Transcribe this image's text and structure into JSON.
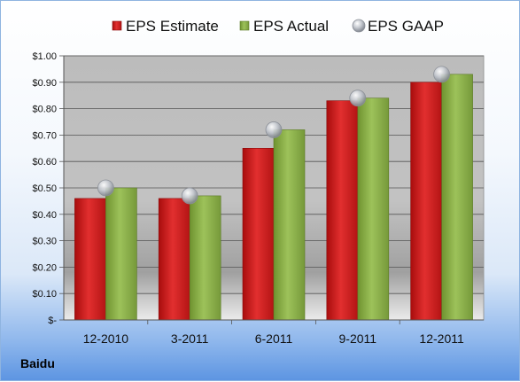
{
  "footer": {
    "company": "Baidu"
  },
  "colors": {
    "estimate": "#d42222",
    "actual": "#8db04a",
    "gaap": "#b8bcc4"
  },
  "chart_data": {
    "type": "bar",
    "categories": [
      "12-2010",
      "3-2011",
      "6-2011",
      "9-2011",
      "12-2011"
    ],
    "series": [
      {
        "name": "EPS Estimate",
        "kind": "bar",
        "values": [
          0.46,
          0.46,
          0.65,
          0.83,
          0.9
        ]
      },
      {
        "name": "EPS Actual",
        "kind": "bar",
        "values": [
          0.5,
          0.47,
          0.72,
          0.84,
          0.93
        ]
      },
      {
        "name": "EPS GAAP",
        "kind": "scatter",
        "values": [
          0.5,
          0.47,
          0.72,
          0.84,
          0.93
        ]
      }
    ],
    "y_ticks": [
      {
        "value": 0.0,
        "label": "$-"
      },
      {
        "value": 0.1,
        "label": "$0.10"
      },
      {
        "value": 0.2,
        "label": "$0.20"
      },
      {
        "value": 0.3,
        "label": "$0.30"
      },
      {
        "value": 0.4,
        "label": "$0.40"
      },
      {
        "value": 0.5,
        "label": "$0.50"
      },
      {
        "value": 0.6,
        "label": "$0.60"
      },
      {
        "value": 0.7,
        "label": "$0.70"
      },
      {
        "value": 0.8,
        "label": "$0.80"
      },
      {
        "value": 0.9,
        "label": "$0.90"
      },
      {
        "value": 1.0,
        "label": "$1.00"
      }
    ],
    "ylim": [
      0,
      1.0
    ],
    "grid": true,
    "legend": "top-center",
    "title": "",
    "xlabel": "",
    "ylabel": ""
  }
}
